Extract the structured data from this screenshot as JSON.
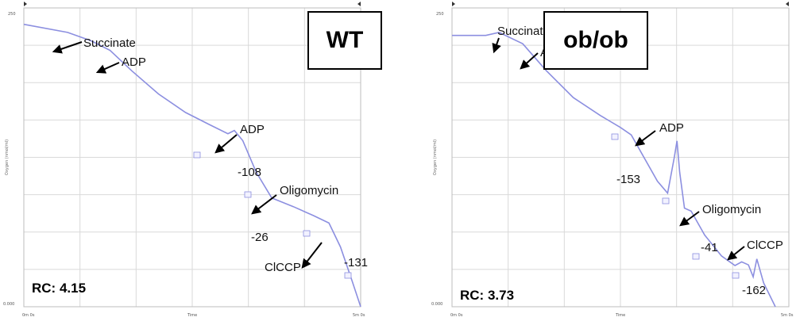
{
  "chart_data": [
    {
      "type": "line",
      "title": "WT",
      "xlabel": "Time",
      "ylabel": "Oxygen (nmol/ml)",
      "ylim": [
        0,
        250
      ],
      "yticks": [
        "250",
        "0.000"
      ],
      "xticks": [
        "0m 0s",
        "Time",
        "5m 0s"
      ],
      "rc_text": "RC: 4.15",
      "series": [
        {
          "values": [
            [
              0.0,
              0.945
            ],
            [
              0.13,
              0.918
            ],
            [
              0.2,
              0.89
            ],
            [
              0.256,
              0.858
            ],
            [
              0.32,
              0.79
            ],
            [
              0.4,
              0.712
            ],
            [
              0.48,
              0.65
            ],
            [
              0.55,
              0.61
            ],
            [
              0.606,
              0.579
            ],
            [
              0.625,
              0.59
            ],
            [
              0.65,
              0.556
            ],
            [
              0.69,
              0.45
            ],
            [
              0.736,
              0.364
            ],
            [
              0.8,
              0.335
            ],
            [
              0.86,
              0.305
            ],
            [
              0.906,
              0.28
            ],
            [
              0.94,
              0.2
            ],
            [
              0.975,
              0.085
            ],
            [
              1.0,
              0.0
            ]
          ]
        }
      ],
      "annotations": [
        {
          "text": "Succinate",
          "kind": "label"
        },
        {
          "text": "ADP",
          "kind": "label"
        },
        {
          "text": "ADP",
          "kind": "label"
        },
        {
          "text": "-108",
          "kind": "rate"
        },
        {
          "text": "Oligomycin",
          "kind": "label"
        },
        {
          "text": "-26",
          "kind": "rate"
        },
        {
          "text": "ClCCP",
          "kind": "label"
        },
        {
          "text": "-131",
          "kind": "rate"
        }
      ]
    },
    {
      "type": "line",
      "title": "ob/ob",
      "xlabel": "Time",
      "ylabel": "Oxygen (nmol/ml)",
      "ylim": [
        0,
        250
      ],
      "yticks": [
        "250",
        "0.000"
      ],
      "xticks": [
        "0m 0s",
        "Time",
        "5m 0s"
      ],
      "rc_text": "RC: 3.73",
      "series": [
        {
          "values": [
            [
              0.0,
              0.908
            ],
            [
              0.1,
              0.908
            ],
            [
              0.14,
              0.918
            ],
            [
              0.21,
              0.88
            ],
            [
              0.28,
              0.79
            ],
            [
              0.36,
              0.7
            ],
            [
              0.44,
              0.64
            ],
            [
              0.5,
              0.6
            ],
            [
              0.532,
              0.575
            ],
            [
              0.61,
              0.42
            ],
            [
              0.64,
              0.38
            ],
            [
              0.66,
              0.5
            ],
            [
              0.668,
              0.555
            ],
            [
              0.676,
              0.45
            ],
            [
              0.69,
              0.33
            ],
            [
              0.71,
              0.32
            ],
            [
              0.75,
              0.24
            ],
            [
              0.8,
              0.17
            ],
            [
              0.84,
              0.138
            ],
            [
              0.86,
              0.15
            ],
            [
              0.88,
              0.14
            ],
            [
              0.894,
              0.1
            ],
            [
              0.905,
              0.16
            ],
            [
              0.925,
              0.08
            ],
            [
              0.96,
              0.0
            ]
          ]
        }
      ],
      "annotations": [
        {
          "text": "Succinate",
          "kind": "label"
        },
        {
          "text": "ADP",
          "kind": "label"
        },
        {
          "text": "ADP",
          "kind": "label"
        },
        {
          "text": "-153",
          "kind": "rate"
        },
        {
          "text": "Oligomycin",
          "kind": "label"
        },
        {
          "text": "-41",
          "kind": "rate"
        },
        {
          "text": "ClCCP",
          "kind": "label"
        },
        {
          "text": "-162",
          "kind": "rate"
        }
      ]
    }
  ],
  "colors": {
    "trace": "#8c8fe0",
    "grid": "#d9d9d9",
    "text": "#111111"
  }
}
